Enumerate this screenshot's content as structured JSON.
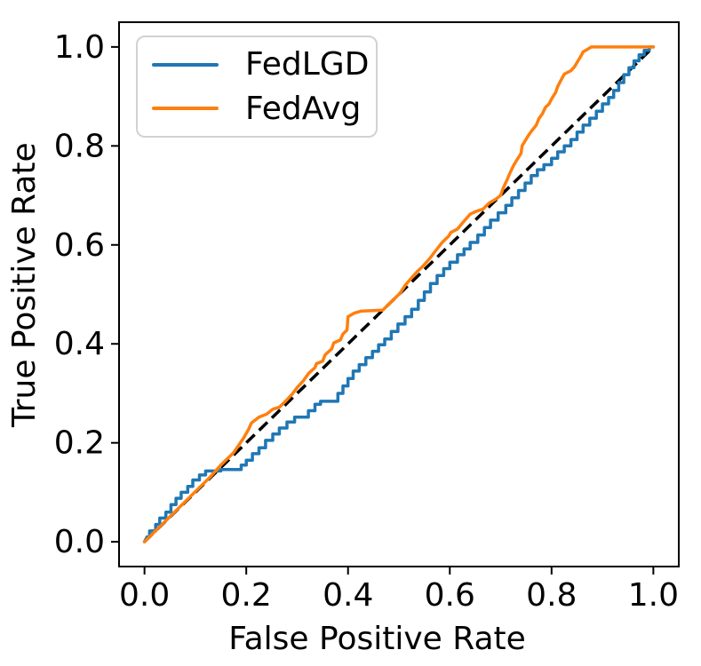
{
  "figure": {
    "background": "#ffffff",
    "axis_color": "#000000",
    "tick_color": "#000000"
  },
  "chart_data": {
    "type": "line",
    "subtype": "roc-curve",
    "title": "",
    "xlabel": "False Positive Rate",
    "ylabel": "True Positive Rate",
    "xlim": [
      -0.05,
      1.05
    ],
    "ylim": [
      -0.05,
      1.05
    ],
    "x_ticks": [
      0.0,
      0.2,
      0.4,
      0.6,
      0.8,
      1.0
    ],
    "y_ticks": [
      0.0,
      0.2,
      0.4,
      0.6,
      0.8,
      1.0
    ],
    "x_tick_labels": [
      "0.0",
      "0.2",
      "0.4",
      "0.6",
      "0.8",
      "1.0"
    ],
    "y_tick_labels": [
      "0.0",
      "0.2",
      "0.4",
      "0.6",
      "0.8",
      "1.0"
    ],
    "grid": false,
    "legend": {
      "position": "upper-left",
      "entries": [
        "FedLGD",
        "FedAvg"
      ]
    },
    "reference_line": {
      "name": "chance-diagonal",
      "color": "#000000",
      "style": "dashed",
      "points": [
        [
          0,
          0
        ],
        [
          1,
          1
        ]
      ]
    },
    "series": [
      {
        "name": "FedLGD",
        "color": "#1f77b4",
        "points": [
          [
            0.0,
            0.0
          ],
          [
            0.005,
            0.01
          ],
          [
            0.01,
            0.01
          ],
          [
            0.01,
            0.022
          ],
          [
            0.022,
            0.022
          ],
          [
            0.022,
            0.035
          ],
          [
            0.03,
            0.035
          ],
          [
            0.03,
            0.048
          ],
          [
            0.042,
            0.048
          ],
          [
            0.042,
            0.06
          ],
          [
            0.052,
            0.06
          ],
          [
            0.052,
            0.075
          ],
          [
            0.062,
            0.075
          ],
          [
            0.062,
            0.088
          ],
          [
            0.072,
            0.088
          ],
          [
            0.072,
            0.1
          ],
          [
            0.085,
            0.1
          ],
          [
            0.085,
            0.112
          ],
          [
            0.095,
            0.112
          ],
          [
            0.095,
            0.125
          ],
          [
            0.108,
            0.125
          ],
          [
            0.108,
            0.135
          ],
          [
            0.12,
            0.135
          ],
          [
            0.12,
            0.143
          ],
          [
            0.15,
            0.143
          ],
          [
            0.15,
            0.146
          ],
          [
            0.19,
            0.146
          ],
          [
            0.19,
            0.155
          ],
          [
            0.2,
            0.155
          ],
          [
            0.2,
            0.165
          ],
          [
            0.212,
            0.165
          ],
          [
            0.212,
            0.178
          ],
          [
            0.225,
            0.178
          ],
          [
            0.225,
            0.19
          ],
          [
            0.238,
            0.19
          ],
          [
            0.238,
            0.205
          ],
          [
            0.252,
            0.205
          ],
          [
            0.252,
            0.218
          ],
          [
            0.265,
            0.218
          ],
          [
            0.265,
            0.23
          ],
          [
            0.28,
            0.23
          ],
          [
            0.28,
            0.242
          ],
          [
            0.295,
            0.242
          ],
          [
            0.295,
            0.252
          ],
          [
            0.322,
            0.252
          ],
          [
            0.322,
            0.265
          ],
          [
            0.335,
            0.265
          ],
          [
            0.335,
            0.278
          ],
          [
            0.346,
            0.278
          ],
          [
            0.346,
            0.284
          ],
          [
            0.38,
            0.284
          ],
          [
            0.38,
            0.3
          ],
          [
            0.39,
            0.3
          ],
          [
            0.39,
            0.315
          ],
          [
            0.4,
            0.315
          ],
          [
            0.4,
            0.33
          ],
          [
            0.41,
            0.33
          ],
          [
            0.41,
            0.345
          ],
          [
            0.422,
            0.345
          ],
          [
            0.422,
            0.358
          ],
          [
            0.435,
            0.358
          ],
          [
            0.435,
            0.372
          ],
          [
            0.448,
            0.372
          ],
          [
            0.448,
            0.385
          ],
          [
            0.46,
            0.385
          ],
          [
            0.46,
            0.398
          ],
          [
            0.472,
            0.398
          ],
          [
            0.472,
            0.41
          ],
          [
            0.485,
            0.41
          ],
          [
            0.485,
            0.425
          ],
          [
            0.498,
            0.425
          ],
          [
            0.498,
            0.44
          ],
          [
            0.512,
            0.44
          ],
          [
            0.512,
            0.455
          ],
          [
            0.525,
            0.455
          ],
          [
            0.525,
            0.47
          ],
          [
            0.538,
            0.47
          ],
          [
            0.538,
            0.488
          ],
          [
            0.55,
            0.488
          ],
          [
            0.55,
            0.505
          ],
          [
            0.562,
            0.505
          ],
          [
            0.562,
            0.522
          ],
          [
            0.575,
            0.522
          ],
          [
            0.575,
            0.538
          ],
          [
            0.588,
            0.538
          ],
          [
            0.588,
            0.552
          ],
          [
            0.6,
            0.552
          ],
          [
            0.6,
            0.565
          ],
          [
            0.615,
            0.565
          ],
          [
            0.615,
            0.58
          ],
          [
            0.628,
            0.58
          ],
          [
            0.628,
            0.592
          ],
          [
            0.64,
            0.592
          ],
          [
            0.64,
            0.605
          ],
          [
            0.655,
            0.605
          ],
          [
            0.655,
            0.62
          ],
          [
            0.668,
            0.62
          ],
          [
            0.668,
            0.635
          ],
          [
            0.68,
            0.635
          ],
          [
            0.68,
            0.65
          ],
          [
            0.695,
            0.65
          ],
          [
            0.695,
            0.665
          ],
          [
            0.71,
            0.665
          ],
          [
            0.71,
            0.68
          ],
          [
            0.722,
            0.68
          ],
          [
            0.722,
            0.695
          ],
          [
            0.735,
            0.695
          ],
          [
            0.735,
            0.71
          ],
          [
            0.748,
            0.71
          ],
          [
            0.748,
            0.725
          ],
          [
            0.76,
            0.725
          ],
          [
            0.76,
            0.74
          ],
          [
            0.772,
            0.74
          ],
          [
            0.772,
            0.752
          ],
          [
            0.785,
            0.752
          ],
          [
            0.785,
            0.762
          ],
          [
            0.8,
            0.762
          ],
          [
            0.8,
            0.775
          ],
          [
            0.812,
            0.775
          ],
          [
            0.812,
            0.788
          ],
          [
            0.825,
            0.788
          ],
          [
            0.825,
            0.8
          ],
          [
            0.838,
            0.8
          ],
          [
            0.838,
            0.813
          ],
          [
            0.85,
            0.813
          ],
          [
            0.85,
            0.828
          ],
          [
            0.862,
            0.828
          ],
          [
            0.862,
            0.842
          ],
          [
            0.875,
            0.842
          ],
          [
            0.875,
            0.856
          ],
          [
            0.888,
            0.856
          ],
          [
            0.888,
            0.87
          ],
          [
            0.9,
            0.87
          ],
          [
            0.9,
            0.885
          ],
          [
            0.912,
            0.885
          ],
          [
            0.912,
            0.898
          ],
          [
            0.922,
            0.898
          ],
          [
            0.922,
            0.912
          ],
          [
            0.932,
            0.912
          ],
          [
            0.932,
            0.928
          ],
          [
            0.942,
            0.928
          ],
          [
            0.942,
            0.944
          ],
          [
            0.952,
            0.944
          ],
          [
            0.952,
            0.958
          ],
          [
            0.962,
            0.958
          ],
          [
            0.962,
            0.972
          ],
          [
            0.972,
            0.972
          ],
          [
            0.972,
            0.984
          ],
          [
            0.982,
            0.984
          ],
          [
            0.982,
            0.993
          ],
          [
            0.992,
            0.993
          ],
          [
            0.992,
            1.0
          ],
          [
            1.0,
            1.0
          ]
        ]
      },
      {
        "name": "FedAvg",
        "color": "#ff7f0e",
        "points": [
          [
            0.0,
            0.0
          ],
          [
            0.13,
            0.132
          ],
          [
            0.15,
            0.155
          ],
          [
            0.175,
            0.18
          ],
          [
            0.195,
            0.21
          ],
          [
            0.205,
            0.228
          ],
          [
            0.21,
            0.24
          ],
          [
            0.225,
            0.252
          ],
          [
            0.24,
            0.258
          ],
          [
            0.252,
            0.268
          ],
          [
            0.265,
            0.272
          ],
          [
            0.278,
            0.285
          ],
          [
            0.29,
            0.298
          ],
          [
            0.3,
            0.312
          ],
          [
            0.312,
            0.325
          ],
          [
            0.322,
            0.34
          ],
          [
            0.335,
            0.352
          ],
          [
            0.338,
            0.36
          ],
          [
            0.35,
            0.365
          ],
          [
            0.355,
            0.378
          ],
          [
            0.368,
            0.39
          ],
          [
            0.372,
            0.402
          ],
          [
            0.385,
            0.408
          ],
          [
            0.39,
            0.42
          ],
          [
            0.398,
            0.428
          ],
          [
            0.4,
            0.455
          ],
          [
            0.412,
            0.462
          ],
          [
            0.425,
            0.466
          ],
          [
            0.468,
            0.468
          ],
          [
            0.478,
            0.478
          ],
          [
            0.495,
            0.495
          ],
          [
            0.502,
            0.502
          ],
          [
            0.512,
            0.518
          ],
          [
            0.522,
            0.53
          ],
          [
            0.535,
            0.545
          ],
          [
            0.548,
            0.558
          ],
          [
            0.56,
            0.572
          ],
          [
            0.572,
            0.588
          ],
          [
            0.585,
            0.605
          ],
          [
            0.598,
            0.618
          ],
          [
            0.602,
            0.625
          ],
          [
            0.615,
            0.632
          ],
          [
            0.628,
            0.648
          ],
          [
            0.64,
            0.662
          ],
          [
            0.652,
            0.668
          ],
          [
            0.665,
            0.672
          ],
          [
            0.678,
            0.685
          ],
          [
            0.69,
            0.692
          ],
          [
            0.7,
            0.7
          ],
          [
            0.705,
            0.715
          ],
          [
            0.712,
            0.73
          ],
          [
            0.718,
            0.745
          ],
          [
            0.725,
            0.76
          ],
          [
            0.732,
            0.772
          ],
          [
            0.74,
            0.785
          ],
          [
            0.742,
            0.8
          ],
          [
            0.748,
            0.81
          ],
          [
            0.755,
            0.822
          ],
          [
            0.762,
            0.832
          ],
          [
            0.77,
            0.842
          ],
          [
            0.775,
            0.855
          ],
          [
            0.782,
            0.865
          ],
          [
            0.788,
            0.878
          ],
          [
            0.795,
            0.885
          ],
          [
            0.8,
            0.895
          ],
          [
            0.808,
            0.908
          ],
          [
            0.812,
            0.92
          ],
          [
            0.818,
            0.932
          ],
          [
            0.825,
            0.945
          ],
          [
            0.838,
            0.952
          ],
          [
            0.845,
            0.96
          ],
          [
            0.852,
            0.972
          ],
          [
            0.858,
            0.982
          ],
          [
            0.862,
            0.99
          ],
          [
            0.87,
            0.995
          ],
          [
            0.878,
            1.0
          ],
          [
            1.0,
            1.0
          ]
        ]
      }
    ]
  }
}
